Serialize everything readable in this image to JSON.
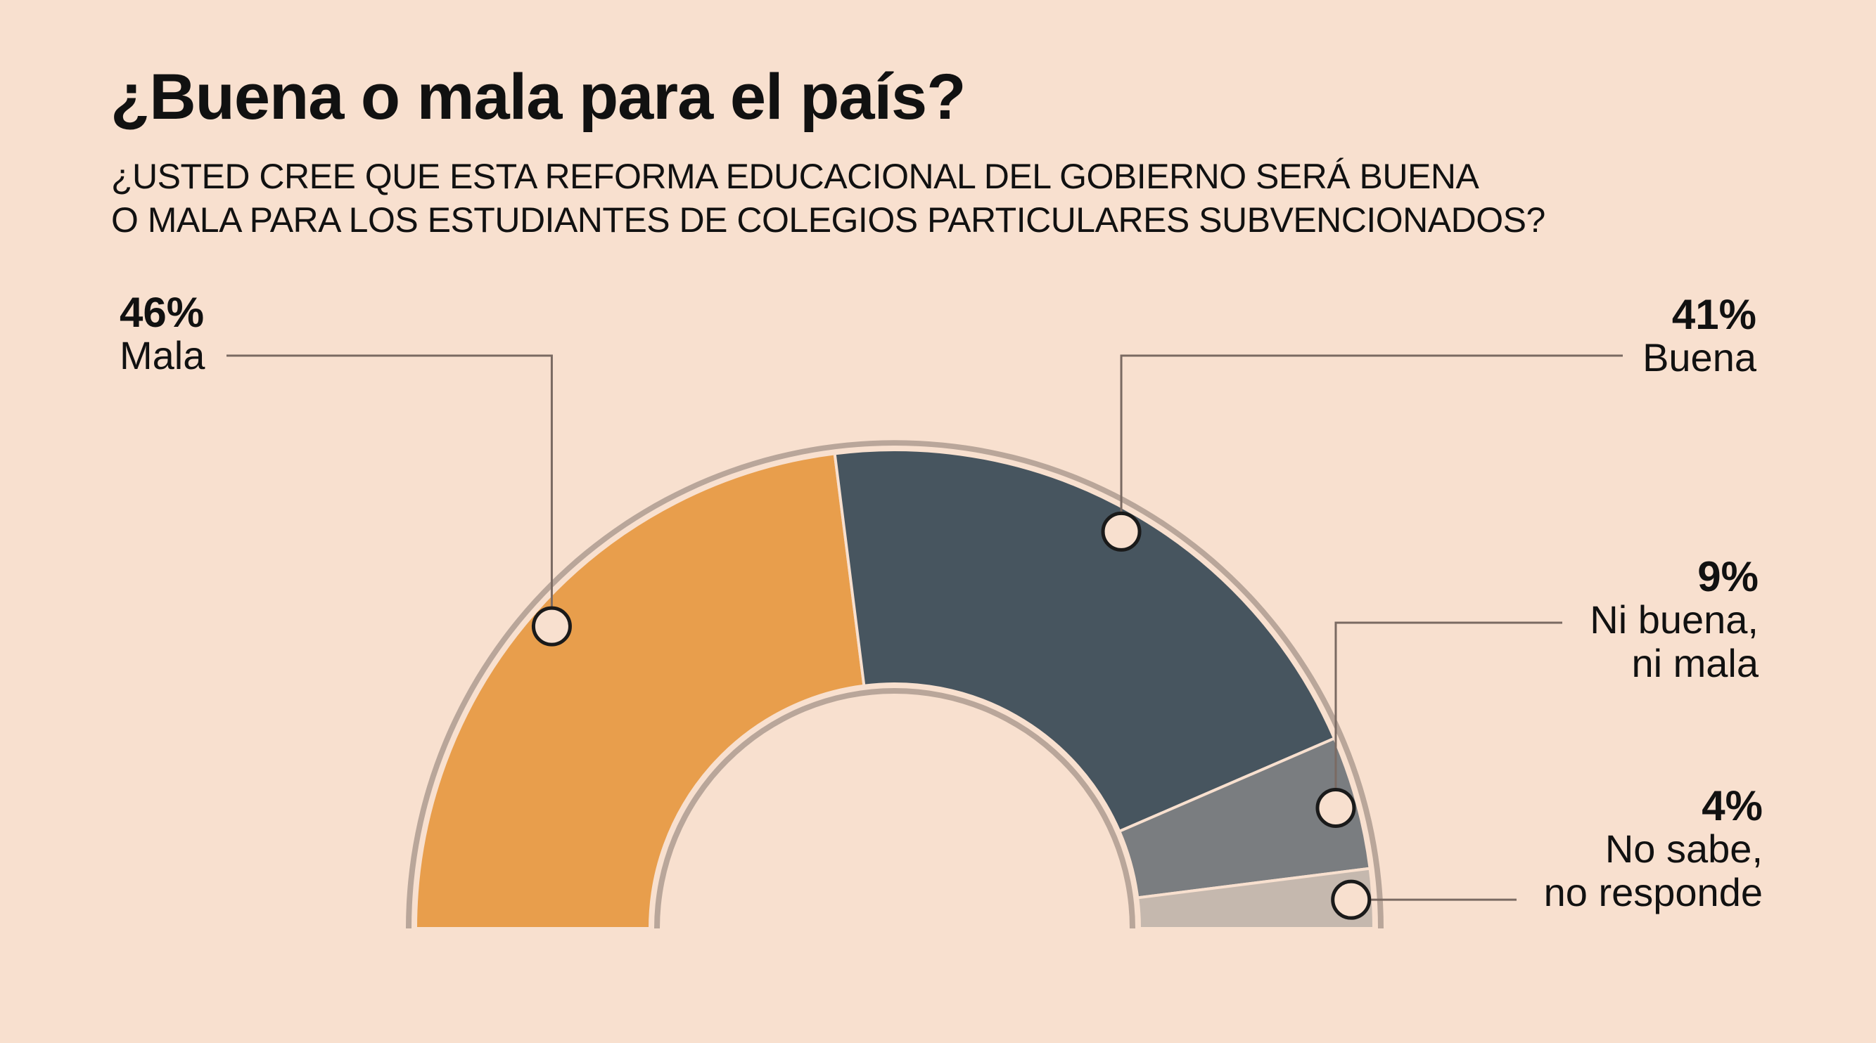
{
  "title": "¿Buena o mala para el país?",
  "subtitle": {
    "line1": "¿USTED CREE QUE ESTA REFORMA EDUCACIONAL DEL GOBIERNO SERÁ BUENA",
    "line2": "O MALA PARA LOS ESTUDIANTES DE COLEGIOS PARTICULARES SUBVENCIONADOS?"
  },
  "colors": {
    "background": "#f8e0cf",
    "outline": "#b9a69a",
    "leader": "#7a6a62"
  },
  "chart_data": {
    "type": "pie",
    "variant": "semicircle-donut",
    "title": "¿Buena o mala para el país?",
    "unit": "%",
    "slices": [
      {
        "key": "mala",
        "value": 46,
        "pct_label": "46%",
        "label_lines": [
          "Mala"
        ],
        "color": "#e89e4c"
      },
      {
        "key": "buena",
        "value": 41,
        "pct_label": "41%",
        "label_lines": [
          "Buena"
        ],
        "color": "#47555f"
      },
      {
        "key": "ni",
        "value": 9,
        "pct_label": "9%",
        "label_lines": [
          "Ni buena,",
          "ni mala"
        ],
        "color": "#7a7d80"
      },
      {
        "key": "nosabe",
        "value": 4,
        "pct_label": "4%",
        "label_lines": [
          "No sabe,",
          "no responde"
        ],
        "color": "#c5b8ae"
      }
    ]
  }
}
